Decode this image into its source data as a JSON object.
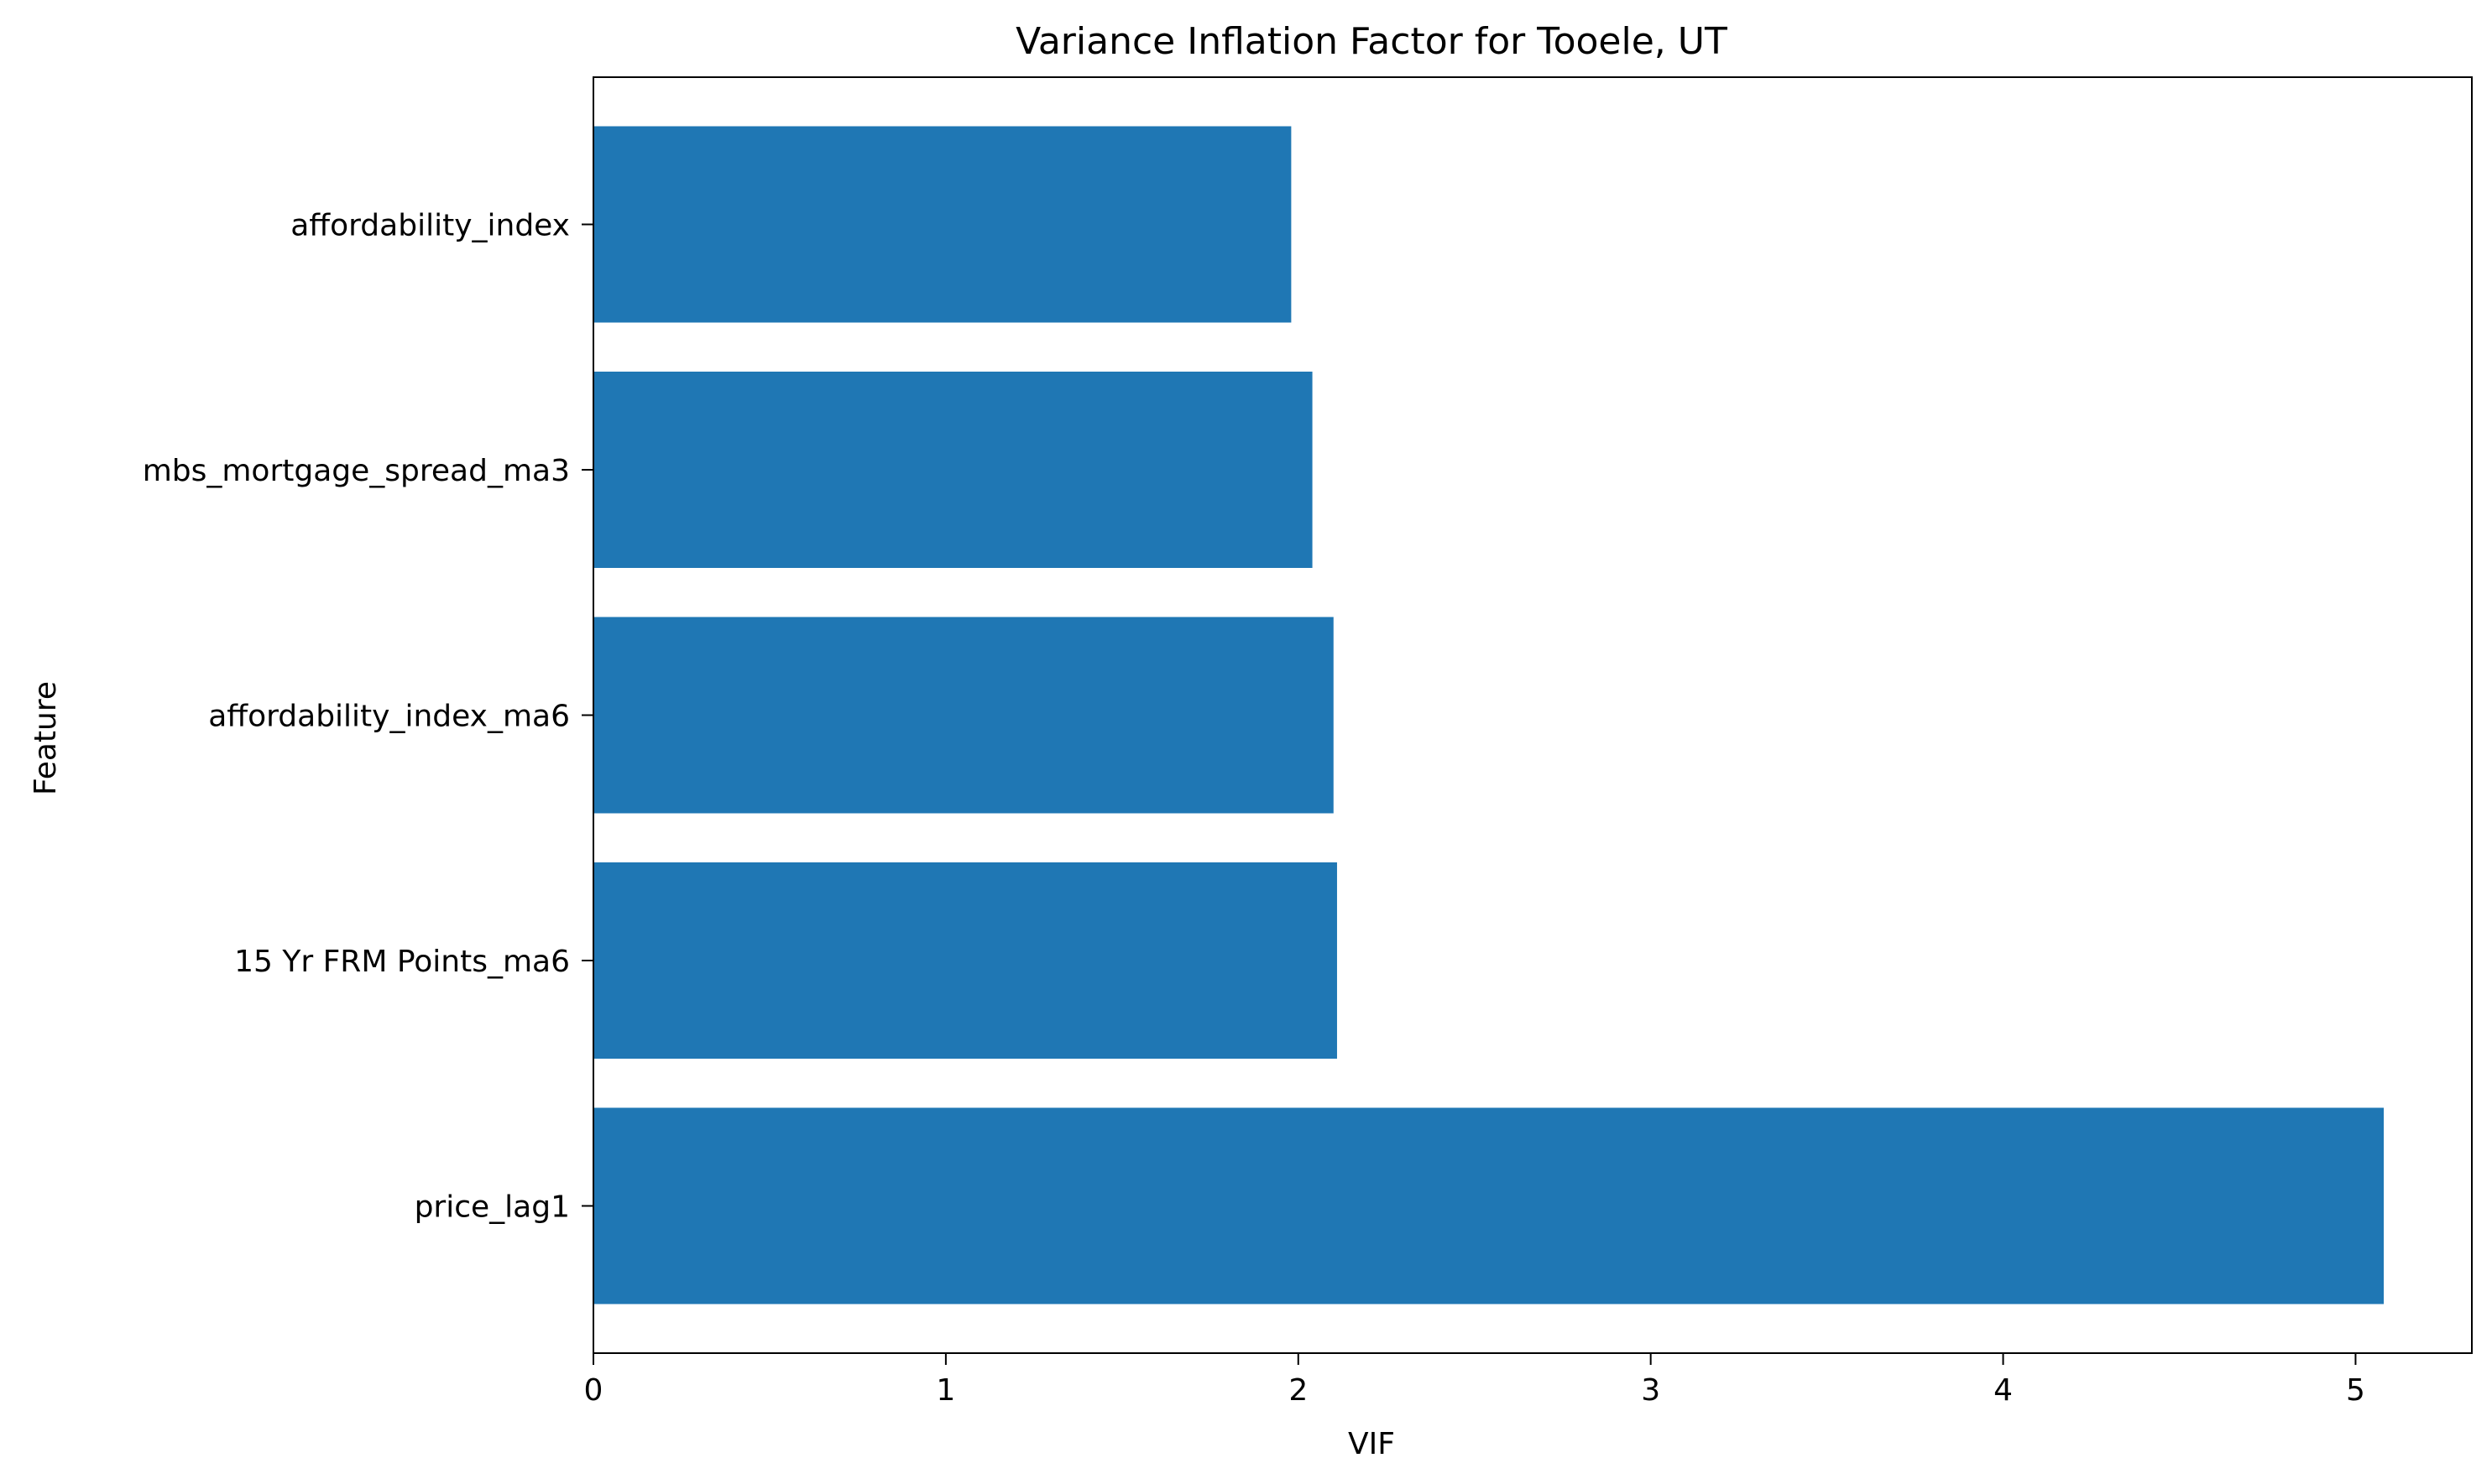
{
  "chart_data": {
    "type": "bar",
    "orientation": "horizontal",
    "title": "Variance Inflation Factor for Tooele, UT",
    "xlabel": "VIF",
    "ylabel": "Feature",
    "categories": [
      "affordability_index",
      "mbs_mortgage_spread_ma3",
      "affordability_index_ma6",
      "15 Yr FRM Points_ma6",
      "price_lag1"
    ],
    "values": [
      1.98,
      2.04,
      2.1,
      2.11,
      5.08
    ],
    "xlim": [
      0,
      5.33
    ],
    "xticks": [
      "0",
      "1",
      "2",
      "3",
      "4",
      "5"
    ],
    "bar_color": "#1f77b4",
    "grid": false,
    "legend": false
  }
}
